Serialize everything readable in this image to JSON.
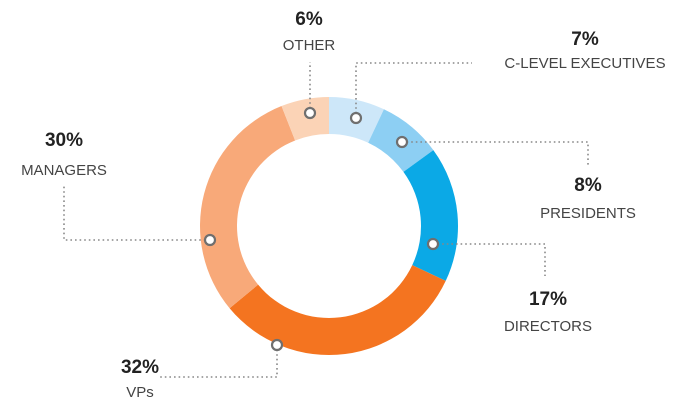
{
  "chart_data": {
    "type": "donut",
    "categories": [
      "C-LEVEL EXECUTIVES",
      "PRESIDENTS",
      "DIRECTORS",
      "VPs",
      "MANAGERS",
      "OTHER"
    ],
    "values": [
      7,
      8,
      17,
      32,
      30,
      6
    ],
    "value_labels": [
      "7%",
      "8%",
      "17%",
      "32%",
      "30%",
      "6%"
    ],
    "colors": [
      "#cde7f9",
      "#8dcff3",
      "#0ba9e6",
      "#f47420",
      "#f8a979",
      "#fbd3b6"
    ]
  }
}
